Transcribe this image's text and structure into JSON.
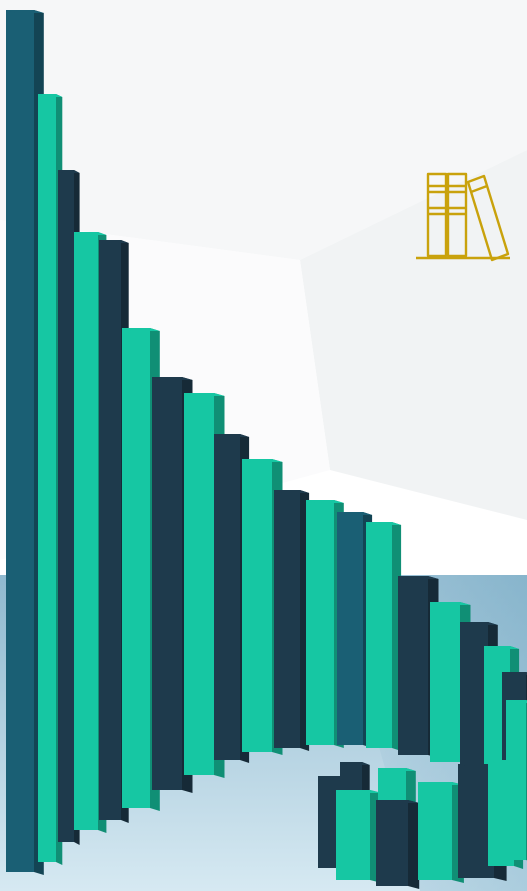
{
  "colors": {
    "background": "#ffffff",
    "facet_light": "#f4f5f6",
    "floor_top": "#8fb9cf",
    "floor_bottom": "#d6e9f2",
    "bar_dark": "#1e3a4c",
    "bar_teal": "#1a5f74",
    "bar_green": "#16c7a3",
    "icon_gold": "#c9a20c"
  },
  "icons": [
    "books-icon"
  ],
  "bar_sequence": [
    "teal",
    "green",
    "dark",
    "green",
    "dark",
    "green",
    "dark",
    "green",
    "dark",
    "green",
    "dark",
    "green",
    "teal",
    "green",
    "dark",
    "green",
    "dark",
    "green",
    "dark",
    "teal"
  ]
}
